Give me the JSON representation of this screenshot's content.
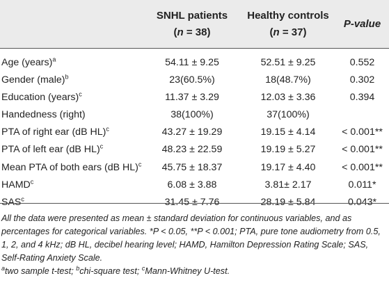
{
  "table": {
    "header": {
      "col1": "",
      "col2_line1": "SNHL patients",
      "col2_line2_pre": "(",
      "col2_line2_n": "n",
      "col2_line2_eq": " = 38)",
      "col3_line1": "Healthy controls",
      "col3_line2_pre": "(",
      "col3_line2_n": "n",
      "col3_line2_eq": " = 37)",
      "col4": "P-value"
    },
    "rows": [
      {
        "label": "Age (years)",
        "sup": "a",
        "snhl": "54.11 ± 9.25",
        "controls": "52.51 ± 9.25",
        "p": "0.552"
      },
      {
        "label": "Gender (male)",
        "sup": "b",
        "snhl": "23(60.5%)",
        "controls": "18(48.7%)",
        "p": "0.302"
      },
      {
        "label": "Education (years)",
        "sup": "c",
        "snhl": "11.37 ± 3.29",
        "controls": "12.03 ± 3.36",
        "p": "0.394"
      },
      {
        "label": "Handedness (right)",
        "sup": "",
        "snhl": "38(100%)",
        "controls": "37(100%)",
        "p": ""
      },
      {
        "label": "PTA of right ear (dB HL)",
        "sup": "c",
        "snhl": "43.27 ± 19.29",
        "controls": "19.15 ± 4.14",
        "p": "< 0.001**"
      },
      {
        "label": "PTA of left ear (dB HL)",
        "sup": "c",
        "snhl": "48.23 ± 22.59",
        "controls": "19.19 ± 5.27",
        "p": "< 0.001**"
      },
      {
        "label": "Mean PTA of both ears (dB HL)",
        "sup": "c",
        "snhl": "45.75 ± 18.37",
        "controls": "19.17 ± 4.40",
        "p": "< 0.001**"
      },
      {
        "label": "HAMD",
        "sup": "c",
        "snhl": "6.08 ± 3.88",
        "controls": "3.81± 2.17",
        "p": "0.011*"
      },
      {
        "label": "SAS",
        "sup": "c",
        "snhl": "31.45 ± 7.76",
        "controls": "28.19 ± 5.84",
        "p": "0.043*"
      }
    ]
  },
  "footnote": {
    "main": "All the data were presented as mean ± standard deviation for continuous variables, and as percentages for categorical variables. *P < 0.05, **P < 0.001; PTA, pure tone audiometry from 0.5, 1, 2, and 4 kHz; dB HL, decibel hearing level; HAMD, Hamilton Depression Rating Scale; SAS, Self-Rating Anxiety Scale.",
    "sup_a": "a",
    "text_a": "two sample t-test; ",
    "sup_b": "b",
    "text_b": "chi-square test; ",
    "sup_c": "c",
    "text_c": "Mann-Whitney U-test."
  }
}
